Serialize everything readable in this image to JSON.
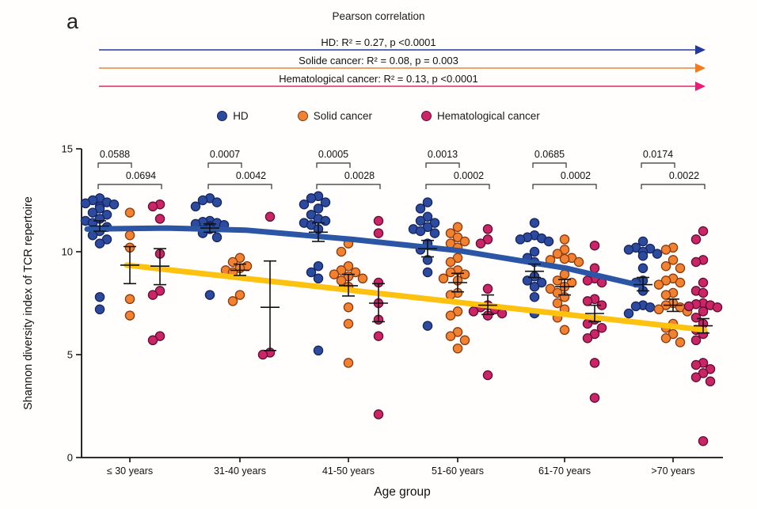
{
  "figure": {
    "panel_label": "a",
    "title": "Pearson correlation",
    "correlations": [
      {
        "name": "HD",
        "label": "HD: R² = 0.27,  p <0.0001",
        "line_color": "#5a6cb2",
        "head_color": "#2438a0"
      },
      {
        "name": "Solide cancer",
        "label": "Solide cancer: R² = 0.08,  p = 0.003",
        "line_color": "#f0a26c",
        "head_color": "#f4791f"
      },
      {
        "name": "Hematological cancer",
        "label": "Hematological cancer: R² = 0.13, p <0.0001",
        "line_color": "#e75e8f",
        "head_color": "#e51e77"
      }
    ],
    "legend": [
      {
        "label": "HD",
        "color": "#2c4b9e",
        "border": "#17255f"
      },
      {
        "label": "Solid cancer",
        "color": "#f08232",
        "border": "#8a3a10"
      },
      {
        "label": "Hematological cancer",
        "color": "#cb2568",
        "border": "#5f0f30"
      }
    ]
  },
  "chart_data": {
    "type": "scatter",
    "title": "",
    "xlabel": "Age group",
    "ylabel": "Shannon diversity index of TCR repertoire",
    "ylim": [
      0,
      15
    ],
    "yticks": [
      0,
      5,
      10,
      15
    ],
    "grid": false,
    "legend_position": "top",
    "categories": [
      "≤ 30 years",
      "31-40 years",
      "41-50 years",
      "51-60 years",
      "61-70 years",
      ">70 years"
    ],
    "series": [
      {
        "name": "HD",
        "color": "#2c4b9e",
        "stroke": "#17255f",
        "values_by_group": [
          [
            12.6,
            12.5,
            12.4,
            12.35,
            12.3,
            12.2,
            12.1,
            11.9,
            11.8,
            11.6,
            11.5,
            11.4,
            11.2,
            11.0,
            10.8,
            10.6,
            10.4,
            7.8,
            7.2
          ],
          [
            12.6,
            12.5,
            12.4,
            12.2,
            11.5,
            11.45,
            11.4,
            11.35,
            11.3,
            11.25,
            11.2,
            11.1,
            10.9,
            10.7,
            7.9
          ],
          [
            12.7,
            12.6,
            12.4,
            12.3,
            12.1,
            11.8,
            11.6,
            11.5,
            11.4,
            11.3,
            11.1,
            9.3,
            9.0,
            8.7,
            5.2
          ],
          [
            12.4,
            12.1,
            11.7,
            11.5,
            11.4,
            11.2,
            11.1,
            11.0,
            10.9,
            10.4,
            10.1,
            9.6,
            9.0,
            6.4
          ],
          [
            11.4,
            10.8,
            10.7,
            10.65,
            10.6,
            10.5,
            10.0,
            9.7,
            9.5,
            8.8,
            8.6,
            8.5,
            8.3,
            7.8,
            7.0
          ],
          [
            10.5,
            10.2,
            10.15,
            10.1,
            10.0,
            9.9,
            9.8,
            9.2,
            8.6,
            8.5,
            8.1,
            7.4,
            7.35,
            7.3,
            7.0
          ]
        ],
        "mean_sem_by_group": [
          [
            11.25,
            11.0,
            11.5
          ],
          [
            11.15,
            10.95,
            11.35
          ],
          [
            10.95,
            10.5,
            11.4
          ],
          [
            10.15,
            9.75,
            10.55
          ],
          [
            9.05,
            8.75,
            9.4
          ],
          [
            8.4,
            8.1,
            8.75
          ]
        ]
      },
      {
        "name": "Solid cancer",
        "color": "#f08232",
        "stroke": "#8a3a10",
        "values_by_group": [
          [
            11.9,
            10.8,
            10.2,
            7.7,
            6.9
          ],
          [
            9.7,
            9.5,
            9.3,
            9.2,
            9.1,
            9.0,
            7.9,
            7.6
          ],
          [
            10.4,
            10.0,
            9.3,
            9.1,
            9.0,
            8.9,
            8.8,
            8.7,
            8.6,
            8.3,
            7.3,
            6.5,
            4.6
          ],
          [
            11.2,
            10.9,
            10.7,
            10.5,
            10.4,
            10.2,
            9.7,
            9.5,
            9.1,
            9.0,
            8.9,
            8.7,
            8.6,
            8.0,
            7.9,
            7.1,
            6.9,
            6.1,
            5.9,
            5.7,
            5.3
          ],
          [
            10.6,
            10.1,
            9.9,
            9.7,
            9.65,
            9.6,
            9.5,
            8.9,
            8.6,
            8.5,
            8.3,
            8.2,
            8.0,
            7.8,
            7.5,
            7.2,
            6.8,
            6.2
          ],
          [
            10.2,
            10.1,
            9.6,
            9.3,
            9.2,
            8.7,
            8.6,
            8.5,
            8.4,
            8.0,
            7.9,
            7.5,
            7.4,
            7.3,
            7.2,
            7.1,
            6.5,
            6.3,
            6.0,
            5.8,
            5.6
          ]
        ],
        "mean_sem_by_group": [
          [
            9.35,
            8.45,
            10.25
          ],
          [
            9.1,
            8.85,
            9.4
          ],
          [
            8.35,
            7.85,
            8.9
          ],
          [
            8.5,
            8.05,
            8.95
          ],
          [
            8.3,
            7.9,
            8.65
          ],
          [
            7.4,
            7.1,
            7.7
          ]
        ]
      },
      {
        "name": "Hematological cancer",
        "color": "#cb2568",
        "stroke": "#5f0f30",
        "values_by_group": [
          [
            12.3,
            12.2,
            11.6,
            9.9,
            8.1,
            7.9,
            5.9,
            5.7
          ],
          [
            11.7,
            5.1,
            5.0
          ],
          [
            11.5,
            10.9,
            8.5,
            7.5,
            6.7,
            5.9,
            2.1
          ],
          [
            11.1,
            10.6,
            10.4,
            8.2,
            7.4,
            7.3,
            7.2,
            7.1,
            7.0,
            6.9,
            4.0
          ],
          [
            10.3,
            9.2,
            8.7,
            8.6,
            8.5,
            7.7,
            7.6,
            7.4,
            6.7,
            6.5,
            6.3,
            6.0,
            5.8,
            4.6,
            2.9
          ],
          [
            11.0,
            10.6,
            9.6,
            9.5,
            8.5,
            8.1,
            8.0,
            7.5,
            7.45,
            7.4,
            7.35,
            7.3,
            7.1,
            6.8,
            6.5,
            6.2,
            6.0,
            5.7,
            4.6,
            4.5,
            4.3,
            4.1,
            3.9,
            3.7,
            0.8
          ]
        ],
        "mean_sem_by_group": [
          [
            9.3,
            8.4,
            10.15
          ],
          [
            7.3,
            5.2,
            9.55
          ],
          [
            7.5,
            6.6,
            8.45
          ],
          [
            7.4,
            6.95,
            7.9
          ],
          [
            7.0,
            6.6,
            7.4
          ],
          [
            6.4,
            6.05,
            6.75
          ]
        ]
      }
    ],
    "p_values": [
      {
        "group": "≤ 30 years",
        "hd_vs_solid": "0.0588",
        "hd_vs_hema": "0.0694"
      },
      {
        "group": "31-40 years",
        "hd_vs_solid": "0.0007",
        "hd_vs_hema": "0.0042"
      },
      {
        "group": "41-50 years",
        "hd_vs_solid": "0.0005",
        "hd_vs_hema": "0.0028"
      },
      {
        "group": "51-60 years",
        "hd_vs_solid": "0.0013",
        "hd_vs_hema": "0.0002"
      },
      {
        "group": "61-70 years",
        "hd_vs_solid": "0.0685",
        "hd_vs_hema": "0.0002"
      },
      {
        "group": ">70 years",
        "hd_vs_solid": "0.0174",
        "hd_vs_hema": "0.0022"
      }
    ],
    "trend_lines": [
      {
        "name": "HD",
        "color": "#2b55a5",
        "anchors": [
          [
            110,
            11.1
          ],
          [
            210,
            11.15
          ],
          [
            310,
            11.05
          ],
          [
            445,
            10.6
          ],
          [
            580,
            10.05
          ],
          [
            715,
            9.2
          ],
          [
            810,
            8.35
          ]
        ]
      },
      {
        "name": "Cancer",
        "color": "#fdc110",
        "anchors": [
          [
            160,
            9.35
          ],
          [
            890,
            6.2
          ]
        ]
      }
    ],
    "axis_color": "#111111"
  }
}
